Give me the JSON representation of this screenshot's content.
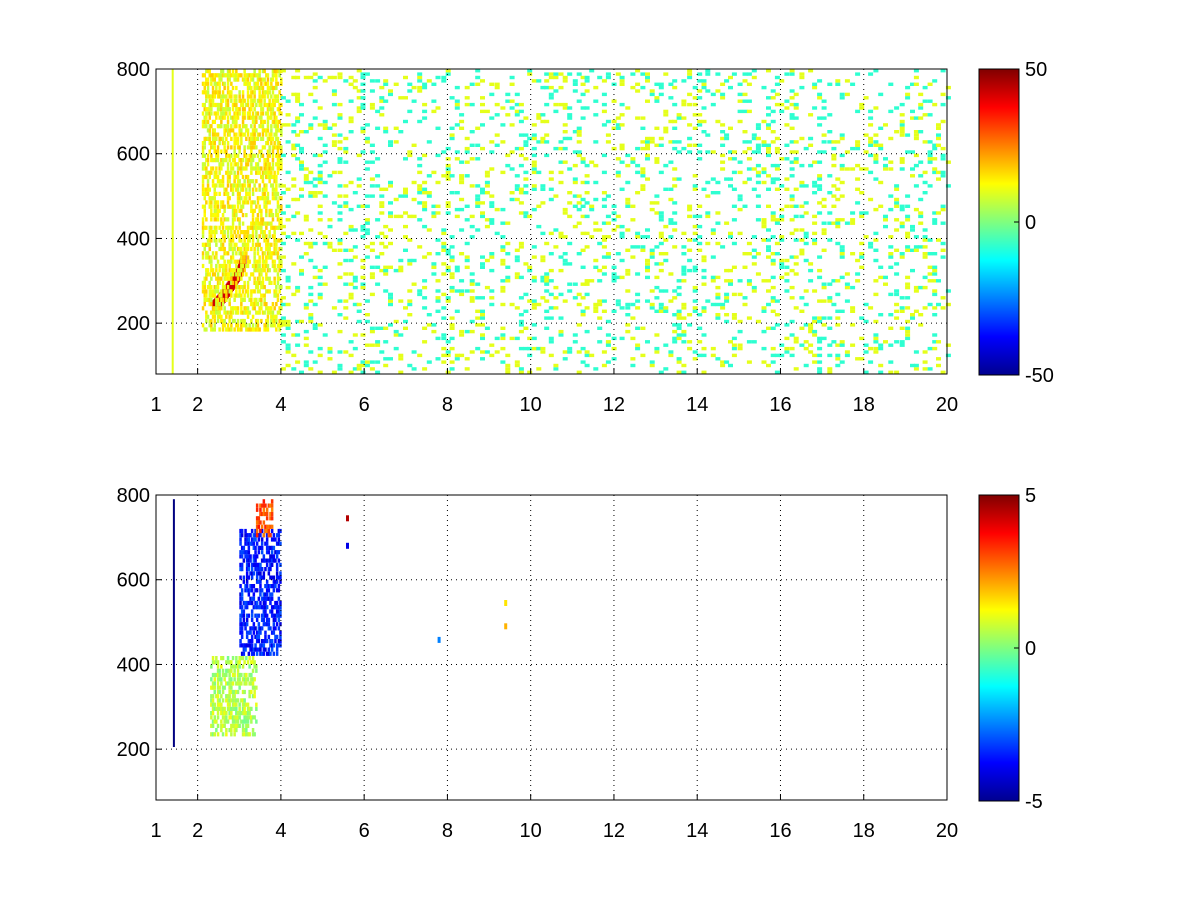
{
  "chart_data": [
    {
      "type": "heatmap",
      "title": "",
      "xlabel": "",
      "ylabel": "",
      "xlim": [
        1,
        20
      ],
      "ylim": [
        80,
        800
      ],
      "x_ticks": [
        1,
        2,
        4,
        6,
        8,
        10,
        12,
        14,
        16,
        18,
        20
      ],
      "x_tick_labels": [
        "1",
        "2",
        "4",
        "6",
        "8",
        "10",
        "12",
        "14",
        "16",
        "18",
        "20"
      ],
      "y_ticks": [
        200,
        400,
        600,
        800
      ],
      "y_tick_labels": [
        "200",
        "400",
        "600",
        "800"
      ],
      "grid": true,
      "colormap": "jet",
      "clim": [
        -50,
        50
      ],
      "colorbar_ticks": [
        -50,
        0,
        50
      ],
      "colorbar_tick_labels": [
        "-50",
        "0",
        "50"
      ],
      "features": [
        {
          "kind": "ridge",
          "x": [
            2.4,
            2.6,
            2.8,
            3.0,
            3.1
          ],
          "y": [
            240,
            262,
            290,
            320,
            352
          ],
          "value": 42
        },
        {
          "kind": "region",
          "x": [
            2.1,
            4.0
          ],
          "y": [
            180,
            800
          ],
          "value": 12
        },
        {
          "kind": "vertical_line",
          "x": 1.4,
          "y": [
            80,
            800
          ],
          "value": 10
        },
        {
          "kind": "sparse_noise",
          "x": [
            4.0,
            20.0
          ],
          "y": [
            80,
            800
          ],
          "values": [
            -8,
            10
          ]
        }
      ]
    },
    {
      "type": "heatmap",
      "title": "",
      "xlabel": "",
      "ylabel": "",
      "xlim": [
        1,
        20
      ],
      "ylim": [
        80,
        800
      ],
      "x_ticks": [
        1,
        2,
        4,
        6,
        8,
        10,
        12,
        14,
        16,
        18,
        20
      ],
      "x_tick_labels": [
        "1",
        "2",
        "4",
        "6",
        "8",
        "10",
        "12",
        "14",
        "16",
        "18",
        "20"
      ],
      "y_ticks": [
        200,
        400,
        600,
        800
      ],
      "y_tick_labels": [
        "200",
        "400",
        "600",
        "800"
      ],
      "grid": true,
      "colormap": "jet",
      "clim": [
        -5,
        5
      ],
      "colorbar_ticks": [
        -5,
        0,
        5
      ],
      "colorbar_tick_labels": [
        "-5",
        "0",
        "5"
      ],
      "features": [
        {
          "kind": "region",
          "x": [
            2.3,
            3.4
          ],
          "y": [
            230,
            420
          ],
          "value": 0.5
        },
        {
          "kind": "region",
          "x": [
            3.0,
            4.0
          ],
          "y": [
            420,
            720
          ],
          "value": -3.5
        },
        {
          "kind": "region",
          "x": [
            3.4,
            3.8
          ],
          "y": [
            700,
            790
          ],
          "value": 3
        },
        {
          "kind": "vertical_line",
          "x": 1.43,
          "y": [
            205,
            790
          ],
          "value": -5
        },
        {
          "kind": "points",
          "x": [
            5.6,
            5.6,
            7.8,
            9.4,
            9.4
          ],
          "y": [
            745,
            680,
            458,
            545,
            490
          ],
          "values": [
            4.5,
            -4,
            -2.5,
            1.5,
            2
          ]
        }
      ]
    }
  ]
}
